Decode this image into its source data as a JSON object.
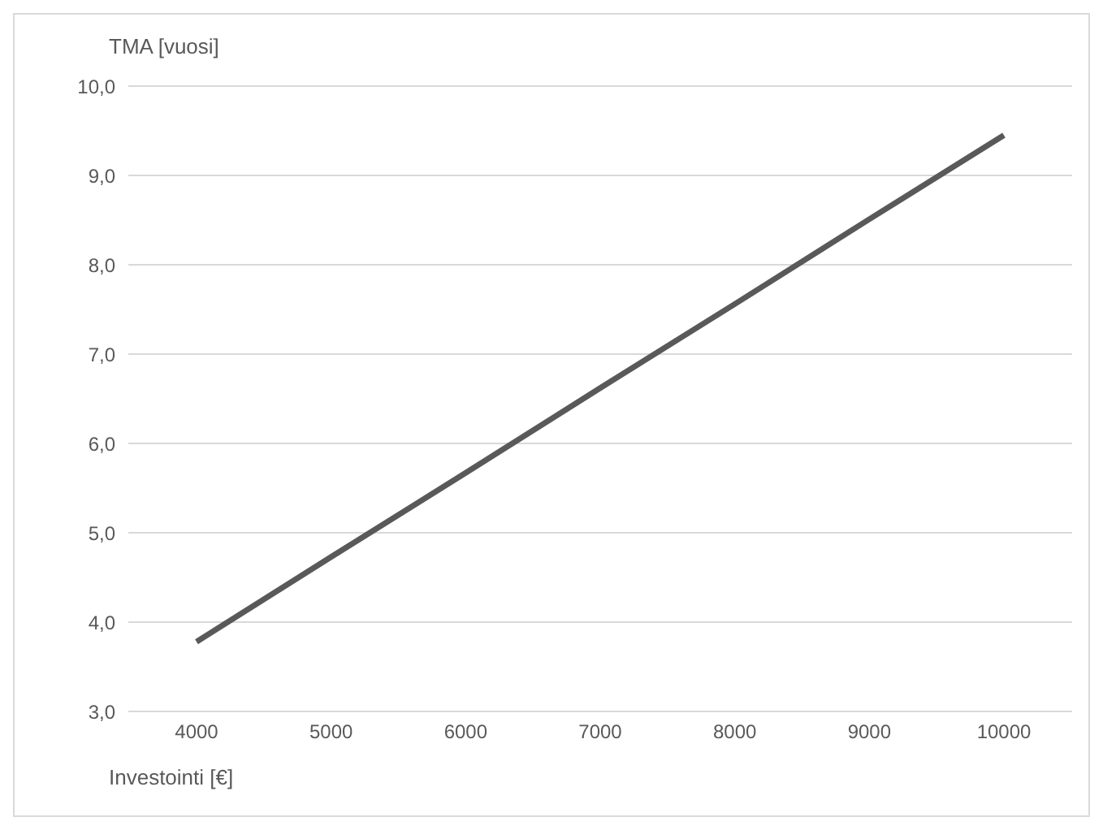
{
  "chart_data": {
    "type": "line",
    "xlabel": "Investointi [€]",
    "ylabel": "TMA [vuosi]",
    "categories": [
      "4000",
      "5000",
      "6000",
      "7000",
      "8000",
      "9000",
      "10000"
    ],
    "series": [
      {
        "color": "#595959",
        "values": [
          3.78,
          4.73,
          5.67,
          6.62,
          7.56,
          8.51,
          9.45
        ]
      }
    ],
    "ylim": [
      3,
      10
    ],
    "yticks": [
      {
        "value": 3,
        "label": "3,0"
      },
      {
        "value": 4,
        "label": "4,0"
      },
      {
        "value": 5,
        "label": "5,0"
      },
      {
        "value": 6,
        "label": "6,0"
      },
      {
        "value": 7,
        "label": "7,0"
      },
      {
        "value": 8,
        "label": "8,0"
      },
      {
        "value": 9,
        "label": "9,0"
      },
      {
        "value": 10,
        "label": "10,0"
      }
    ],
    "grid": "y",
    "marker": "none",
    "line_style": "solid"
  }
}
